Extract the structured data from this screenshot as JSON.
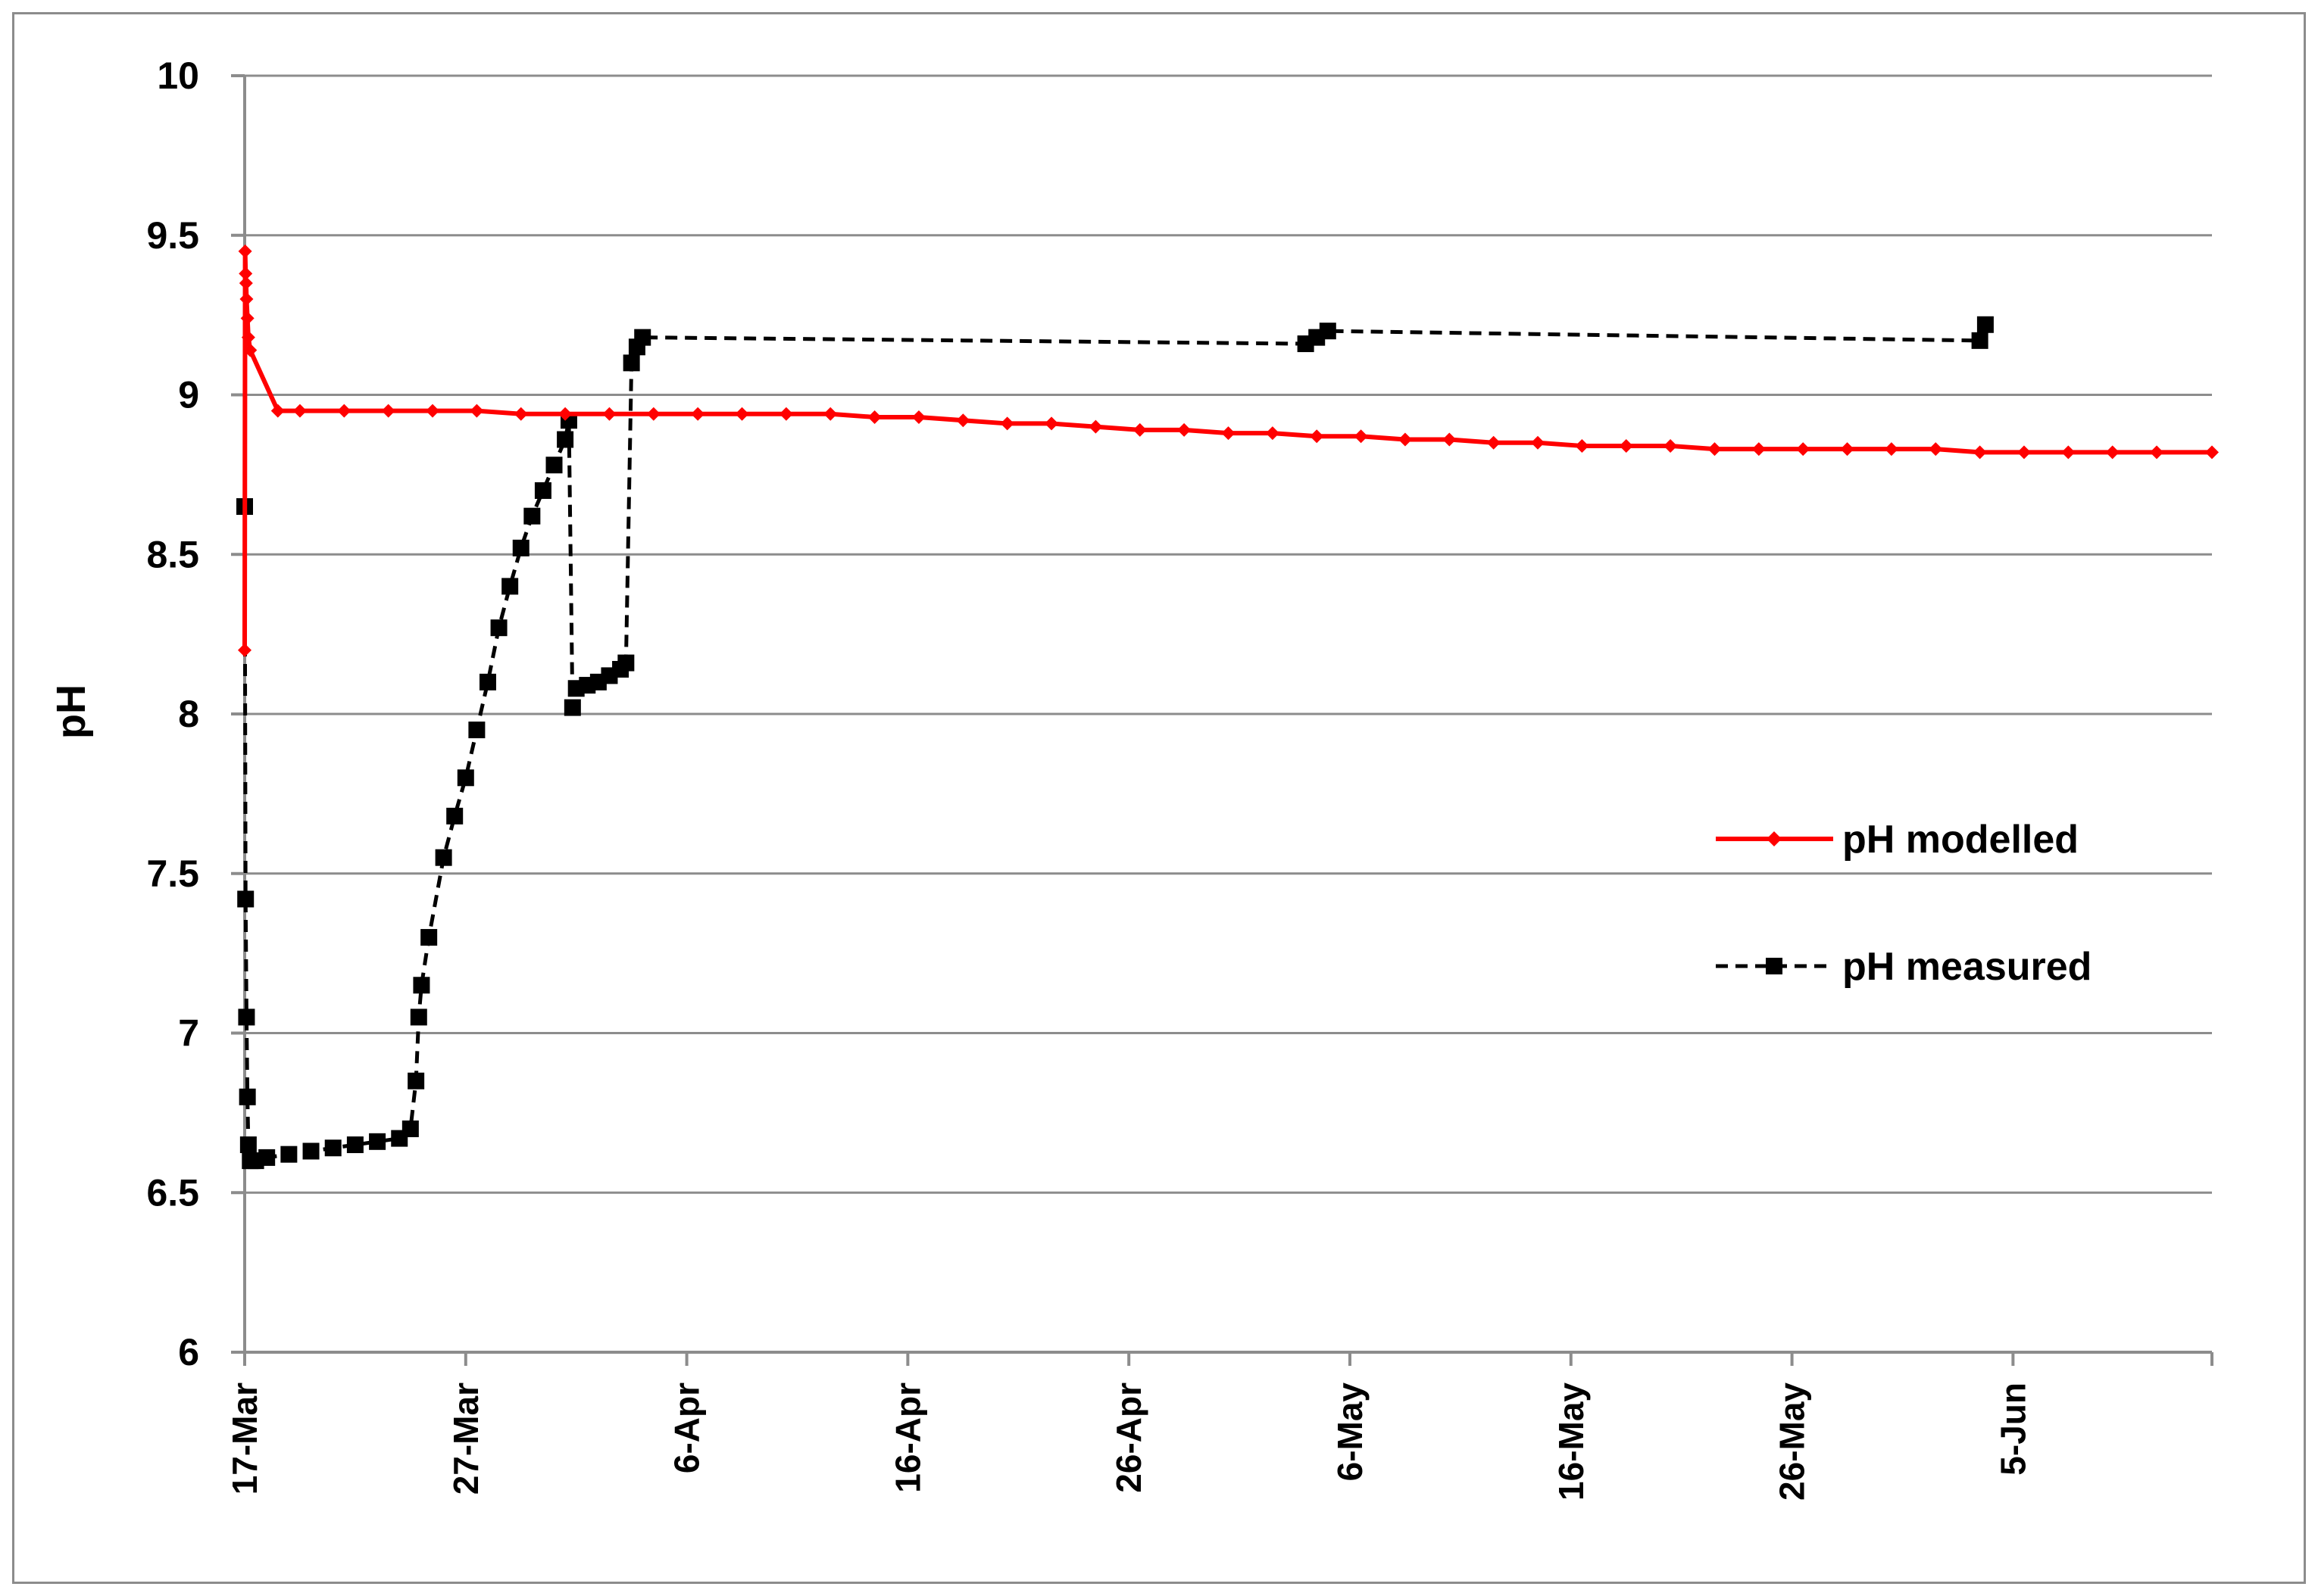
{
  "chart_data": {
    "type": "line",
    "ylabel": "pH",
    "xlabel": "",
    "ylim": [
      6,
      10
    ],
    "yticks": [
      "6",
      "6.5",
      "7",
      "7.5",
      "8",
      "8.5",
      "9",
      "9.5",
      "10"
    ],
    "xlim": [
      "2014-03-17",
      "2014-06-14"
    ],
    "xticks": [
      {
        "date": "2014-03-17",
        "label": "17-Mar"
      },
      {
        "date": "2014-03-27",
        "label": "27-Mar"
      },
      {
        "date": "2014-04-06",
        "label": "6-Apr"
      },
      {
        "date": "2014-04-16",
        "label": "16-Apr"
      },
      {
        "date": "2014-04-26",
        "label": "26-Apr"
      },
      {
        "date": "2014-05-06",
        "label": "6-May"
      },
      {
        "date": "2014-05-16",
        "label": "16-May"
      },
      {
        "date": "2014-05-26",
        "label": "26-May"
      },
      {
        "date": "2014-06-05",
        "label": "5-Jun"
      }
    ],
    "grid": "horizontal",
    "legend_position": "right",
    "series": [
      {
        "name": "pH modelled",
        "color": "#ff0000",
        "line_style": "solid",
        "marker": "diamond",
        "x": [
          "2014-03-17T00:00",
          "2014-03-17T00:30",
          "2014-03-17T01:00",
          "2014-03-17T01:30",
          "2014-03-17T02:00",
          "2014-03-17T03:00",
          "2014-03-17T04:00",
          "2014-03-17T06:00",
          "2014-03-18T12:00",
          "2014-03-19T12:00",
          "2014-03-21T12:00",
          "2014-03-23T12:00",
          "2014-03-25T12:00",
          "2014-03-27T12:00",
          "2014-03-29T12:00",
          "2014-03-31T12:00",
          "2014-04-02T12:00",
          "2014-04-04T12:00",
          "2014-04-06T12:00",
          "2014-04-08T12:00",
          "2014-04-10T12:00",
          "2014-04-12T12:00",
          "2014-04-14T12:00",
          "2014-04-16T12:00",
          "2014-04-18T12:00",
          "2014-04-20T12:00",
          "2014-04-22T12:00",
          "2014-04-24T12:00",
          "2014-04-26T12:00",
          "2014-04-28T12:00",
          "2014-04-30T12:00",
          "2014-05-02T12:00",
          "2014-05-04T12:00",
          "2014-05-06T12:00",
          "2014-05-08T12:00",
          "2014-05-10T12:00",
          "2014-05-12T12:00",
          "2014-05-14T12:00",
          "2014-05-16T12:00",
          "2014-05-18T12:00",
          "2014-05-20T12:00",
          "2014-05-22T12:00",
          "2014-05-24T12:00",
          "2014-05-26T12:00",
          "2014-05-28T12:00",
          "2014-05-30T12:00",
          "2014-06-01T12:00",
          "2014-06-03T12:00",
          "2014-06-05T12:00",
          "2014-06-07T12:00",
          "2014-06-09T12:00",
          "2014-06-11T12:00",
          "2014-06-14T00:00"
        ],
        "y": [
          8.2,
          9.45,
          9.38,
          9.35,
          9.3,
          9.24,
          9.18,
          9.14,
          8.95,
          8.95,
          8.95,
          8.95,
          8.95,
          8.95,
          8.94,
          8.94,
          8.94,
          8.94,
          8.94,
          8.94,
          8.94,
          8.94,
          8.93,
          8.93,
          8.92,
          8.91,
          8.91,
          8.9,
          8.89,
          8.89,
          8.88,
          8.88,
          8.87,
          8.87,
          8.86,
          8.86,
          8.85,
          8.85,
          8.84,
          8.84,
          8.84,
          8.83,
          8.83,
          8.83,
          8.83,
          8.83,
          8.83,
          8.82,
          8.82,
          8.82,
          8.82,
          8.82,
          8.82
        ]
      },
      {
        "name": "pH measured",
        "color": "#000000",
        "line_style": "dashed",
        "marker": "square",
        "x": [
          "2014-03-17T00:00",
          "2014-03-17T01:00",
          "2014-03-17T02:00",
          "2014-03-17T03:00",
          "2014-03-17T04:00",
          "2014-03-17T06:00",
          "2014-03-17T08:00",
          "2014-03-17T12:00",
          "2014-03-18T00:00",
          "2014-03-19T00:00",
          "2014-03-20T00:00",
          "2014-03-21T00:00",
          "2014-03-22T00:00",
          "2014-03-23T00:00",
          "2014-03-24T00:00",
          "2014-03-24T12:00",
          "2014-03-24T18:00",
          "2014-03-24T21:00",
          "2014-03-25T00:00",
          "2014-03-25T08:00",
          "2014-03-26T00:00",
          "2014-03-26T12:00",
          "2014-03-27T00:00",
          "2014-03-27T12:00",
          "2014-03-28T00:00",
          "2014-03-28T12:00",
          "2014-03-29T00:00",
          "2014-03-29T12:00",
          "2014-03-30T00:00",
          "2014-03-30T12:00",
          "2014-03-31T00:00",
          "2014-03-31T12:00",
          "2014-03-31T16:00",
          "2014-03-31T20:00",
          "2014-04-01T00:00",
          "2014-04-01T12:00",
          "2014-04-02T00:00",
          "2014-04-02T12:00",
          "2014-04-03T00:00",
          "2014-04-03T06:00",
          "2014-04-03T12:00",
          "2014-04-03T18:00",
          "2014-04-04T00:00",
          "2014-05-04T00:00",
          "2014-05-04T12:00",
          "2014-05-05T00:00",
          "2014-06-03T12:00",
          "2014-06-03T18:00"
        ],
        "y": [
          8.65,
          7.42,
          7.05,
          6.8,
          6.65,
          6.6,
          6.6,
          6.6,
          6.61,
          6.62,
          6.63,
          6.64,
          6.65,
          6.66,
          6.67,
          6.7,
          6.85,
          7.05,
          7.15,
          7.3,
          7.55,
          7.68,
          7.8,
          7.95,
          8.1,
          8.27,
          8.4,
          8.52,
          8.62,
          8.7,
          8.78,
          8.86,
          8.92,
          8.02,
          8.08,
          8.09,
          8.1,
          8.12,
          8.14,
          8.16,
          9.1,
          9.15,
          9.18,
          9.16,
          9.18,
          9.2,
          9.17,
          9.22
        ]
      }
    ]
  }
}
